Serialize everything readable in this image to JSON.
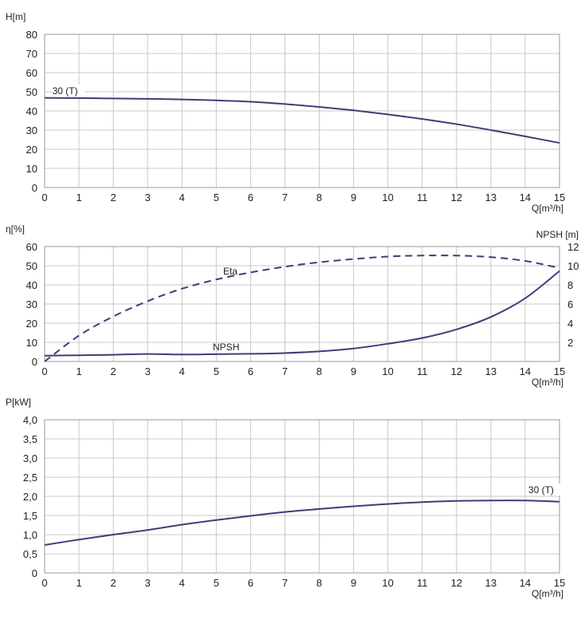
{
  "chart_data": [
    {
      "type": "line",
      "ylabel": "H[m]",
      "xlabel": "Q[m³/h]",
      "xlim": [
        0,
        15
      ],
      "ylim": [
        0,
        80
      ],
      "xticks": [
        "0",
        "1",
        "2",
        "3",
        "4",
        "5",
        "6",
        "7",
        "8",
        "9",
        "10",
        "11",
        "12",
        "13",
        "14",
        "15"
      ],
      "yticks": [
        "0",
        "10",
        "20",
        "30",
        "40",
        "50",
        "60",
        "70",
        "80"
      ],
      "grid": true,
      "annotations": [
        {
          "text": "30 (T)",
          "x": 0.2,
          "y": 47
        }
      ],
      "series": [
        {
          "name": "30 (T)",
          "x": [
            0,
            1,
            2,
            3,
            4,
            5,
            6,
            7,
            8,
            9,
            10,
            11,
            12,
            13,
            14,
            15
          ],
          "y": [
            46.8,
            46.7,
            46.5,
            46.3,
            46.0,
            45.5,
            44.8,
            43.6,
            42.1,
            40.3,
            38.2,
            35.8,
            33.1,
            30.0,
            26.7,
            23.3
          ],
          "style": "solid"
        }
      ],
      "color": "#3c3f77"
    },
    {
      "type": "line",
      "ylabel": "η[%]",
      "y2label": "NPSH [m]",
      "xlabel": "Q[m³/h]",
      "xlim": [
        0,
        15
      ],
      "ylim": [
        0,
        60
      ],
      "y2lim": [
        0,
        12
      ],
      "xticks": [
        "0",
        "1",
        "2",
        "3",
        "4",
        "5",
        "6",
        "7",
        "8",
        "9",
        "10",
        "11",
        "12",
        "13",
        "14",
        "15"
      ],
      "yticks": [
        "0",
        "10",
        "20",
        "30",
        "40",
        "50",
        "60"
      ],
      "y2ticks": [
        "2",
        "4",
        "6",
        "8",
        "10",
        "12"
      ],
      "grid": true,
      "series": [
        {
          "name": "Eta",
          "axis": "left",
          "style": "dashed",
          "x": [
            0,
            1,
            2,
            3,
            4,
            5,
            6,
            7,
            8,
            9,
            10,
            11,
            12,
            13,
            14,
            15
          ],
          "y": [
            0,
            13.5,
            23.5,
            31.5,
            38.0,
            42.8,
            46.5,
            49.5,
            51.8,
            53.5,
            54.8,
            55.3,
            55.3,
            54.5,
            52.5,
            48.8
          ]
        },
        {
          "name": "NPSH",
          "axis": "right",
          "style": "solid",
          "x": [
            0,
            1,
            2,
            3,
            4,
            5,
            6,
            7,
            8,
            9,
            10,
            11,
            12,
            13,
            14,
            15
          ],
          "y": [
            0.6,
            0.65,
            0.7,
            0.78,
            0.73,
            0.76,
            0.8,
            0.88,
            1.05,
            1.35,
            1.85,
            2.45,
            3.35,
            4.65,
            6.6,
            9.45
          ]
        }
      ],
      "color": "#3c3f77"
    },
    {
      "type": "line",
      "ylabel": "P[kW]",
      "xlabel": "Q[m³/h]",
      "xlim": [
        0,
        15
      ],
      "ylim": [
        0,
        4.0
      ],
      "xticks": [
        "0",
        "1",
        "2",
        "3",
        "4",
        "5",
        "6",
        "7",
        "8",
        "9",
        "10",
        "11",
        "12",
        "13",
        "14",
        "15"
      ],
      "yticks": [
        "0",
        "0,5",
        "1,0",
        "1,5",
        "2,0",
        "2,5",
        "3,0",
        "3,5",
        "4,0"
      ],
      "grid": true,
      "annotations": [
        {
          "text": "30 (T)",
          "x": 14.5,
          "y": 2.0
        }
      ],
      "series": [
        {
          "name": "30 (T)",
          "x": [
            0,
            1,
            2,
            3,
            4,
            5,
            6,
            7,
            8,
            9,
            10,
            11,
            12,
            13,
            14,
            15
          ],
          "y": [
            0.73,
            0.87,
            1.0,
            1.12,
            1.26,
            1.38,
            1.49,
            1.59,
            1.67,
            1.74,
            1.8,
            1.85,
            1.88,
            1.89,
            1.89,
            1.86
          ]
        }
      ],
      "color": "#3c3f77"
    }
  ]
}
